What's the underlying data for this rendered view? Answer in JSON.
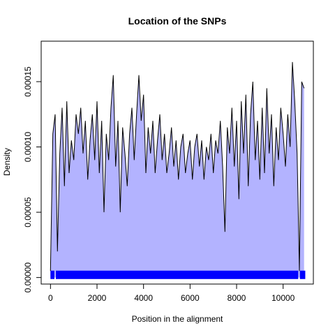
{
  "chart_data": {
    "type": "area",
    "title": "Location of the SNPs",
    "xlabel": "Position in the alignment",
    "ylabel": "Density",
    "xlim": [
      -400,
      11300
    ],
    "ylim": [
      -5e-06,
      0.000181
    ],
    "x_ticks": [
      0,
      2000,
      4000,
      6000,
      8000,
      10000
    ],
    "x_tick_labels": [
      "0",
      "2000",
      "4000",
      "6000",
      "8000",
      "10000"
    ],
    "y_ticks": [
      0,
      5e-05,
      0.0001,
      0.00015
    ],
    "y_tick_labels": [
      "0.00000",
      "0.00005",
      "0.00010",
      "0.00015"
    ],
    "grid": false,
    "legend": "none",
    "colors": {
      "fill": "#b3b3ff",
      "line": "#000000",
      "rug": "#0000ff",
      "frame": "#000000"
    },
    "series": [
      {
        "x": [
          0,
          100,
          200,
          300,
          400,
          500,
          600,
          700,
          800,
          900,
          1000,
          1100,
          1200,
          1300,
          1400,
          1500,
          1600,
          1700,
          1800,
          1900,
          2000,
          2100,
          2200,
          2300,
          2400,
          2500,
          2600,
          2700,
          2800,
          2900,
          3000,
          3100,
          3200,
          3300,
          3400,
          3500,
          3600,
          3700,
          3800,
          3900,
          4000,
          4100,
          4200,
          4300,
          4400,
          4500,
          4600,
          4700,
          4800,
          4900,
          5000,
          5100,
          5200,
          5300,
          5400,
          5500,
          5600,
          5700,
          5800,
          5900,
          6000,
          6100,
          6200,
          6300,
          6400,
          6500,
          6600,
          6700,
          6800,
          6900,
          7000,
          7100,
          7200,
          7300,
          7400,
          7500,
          7600,
          7700,
          7800,
          7900,
          8000,
          8100,
          8200,
          8300,
          8400,
          8500,
          8600,
          8700,
          8800,
          8900,
          9000,
          9100,
          9200,
          9300,
          9400,
          9500,
          9600,
          9700,
          9800,
          9900,
          10000,
          10100,
          10200,
          10300,
          10400,
          10500,
          10600,
          10700,
          10800,
          10900
        ],
        "y": [
          5e-06,
          0.00011,
          0.000125,
          2e-05,
          9.5e-05,
          0.00013,
          7e-05,
          0.000135,
          8e-05,
          0.000105,
          9e-05,
          0.000125,
          0.00011,
          0.00013,
          9.5e-05,
          0.00012,
          7.5e-05,
          0.000105,
          0.000125,
          9e-05,
          0.000135,
          8e-05,
          0.00012,
          5e-05,
          0.00011,
          9e-05,
          0.00013,
          0.000155,
          8.5e-05,
          0.00012,
          5e-05,
          0.000115,
          9.5e-05,
          7e-05,
          0.00011,
          0.00013,
          9e-05,
          0.000125,
          0.000155,
          0.00012,
          0.00014,
          8e-05,
          0.000115,
          9.5e-05,
          0.00012,
          8e-05,
          0.000105,
          0.000125,
          9e-05,
          0.00011,
          8e-05,
          9.5e-05,
          0.000115,
          8.5e-05,
          0.000105,
          7.5e-05,
          0.0001,
          0.00011,
          8e-05,
          9.5e-05,
          0.000105,
          7.5e-05,
          0.0001,
          0.00011,
          8.5e-05,
          0.000105,
          7.5e-05,
          0.0001,
          9e-05,
          0.00011,
          8e-05,
          0.000105,
          9.5e-05,
          0.00012,
          8.5e-05,
          3.5e-05,
          0.000115,
          9.5e-05,
          0.00013,
          8.5e-05,
          0.00012,
          6e-05,
          0.000135,
          9.5e-05,
          0.00014,
          7e-05,
          0.000125,
          0.00015,
          9e-05,
          0.00012,
          7.5e-05,
          0.00013,
          8e-05,
          0.000145,
          9.5e-05,
          0.000125,
          7e-05,
          0.000115,
          9e-05,
          0.00013,
          0.00011,
          8.5e-05,
          0.000125,
          0.0001,
          0.000165,
          0.000135,
          9.5e-05,
          5e-06,
          0.00015,
          0.000145
        ]
      }
    ],
    "rug_gaps": [
      [
        -400,
        0
      ],
      [
        170,
        230
      ],
      [
        10650,
        10720
      ],
      [
        10950,
        11300
      ]
    ]
  }
}
